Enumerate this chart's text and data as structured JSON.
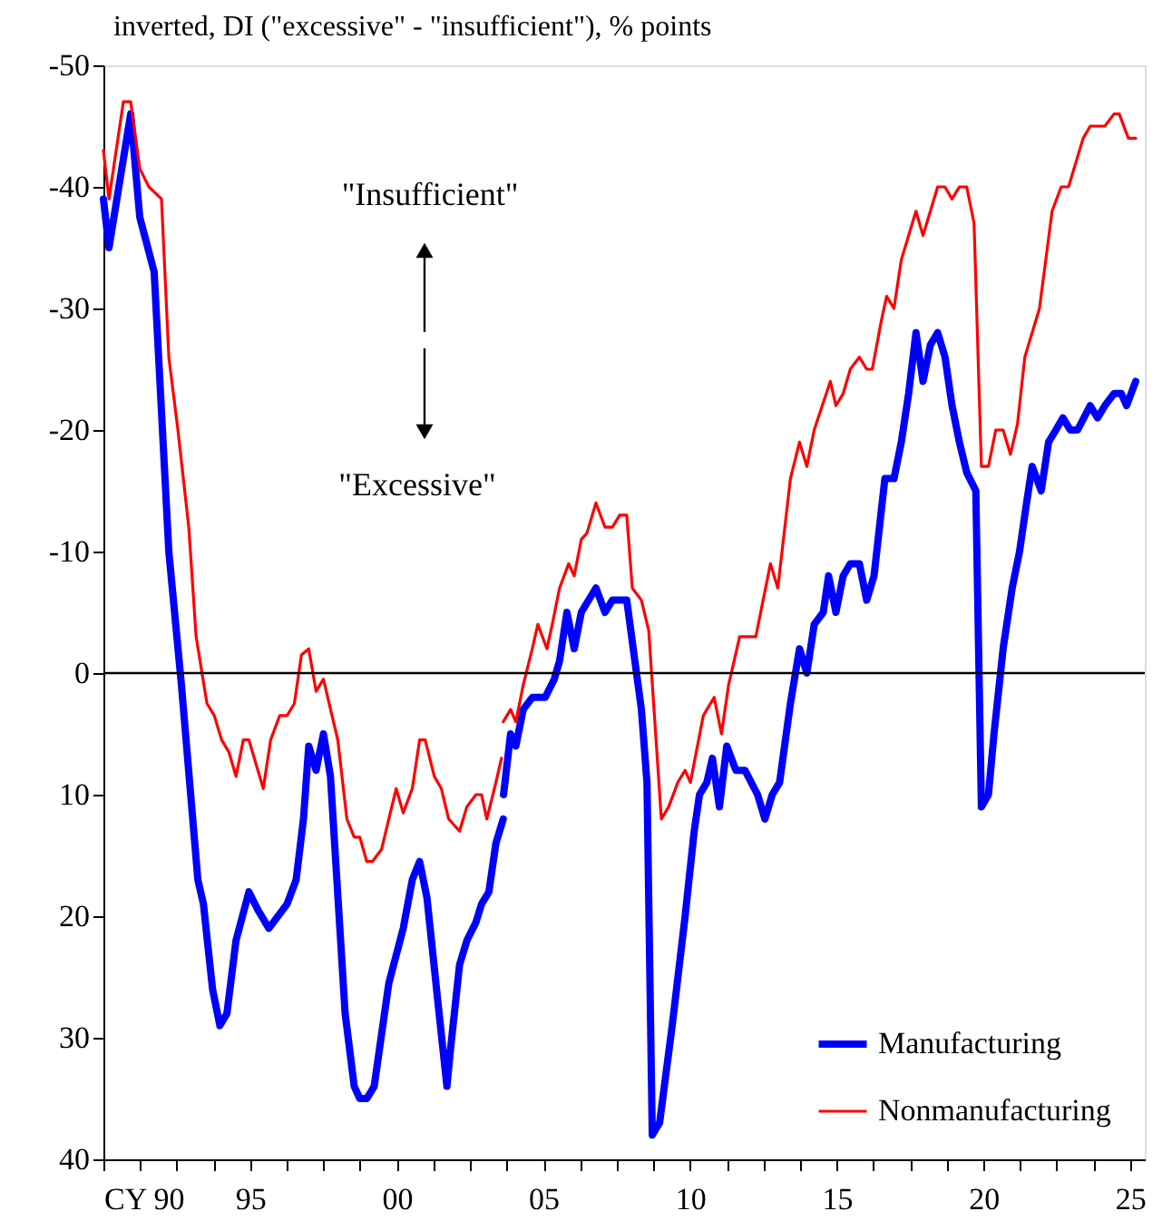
{
  "chart_data": {
    "type": "line",
    "ylabel": "inverted, DI (\"excessive\" - \"insufficient\"), % points",
    "annotations": [
      "\"Insufficient\"",
      "\"Excessive\""
    ],
    "xlim": [
      1990,
      2025.5
    ],
    "xticks": [
      {
        "value": 1990,
        "label": "CY 90"
      },
      {
        "value": 1991.25,
        "label": null
      },
      {
        "value": 1992.5,
        "label": null
      },
      {
        "value": 1993.75,
        "label": null
      },
      {
        "value": 1995,
        "label": "95"
      },
      {
        "value": 1996.25,
        "label": null
      },
      {
        "value": 1997.5,
        "label": null
      },
      {
        "value": 1998.75,
        "label": null
      },
      {
        "value": 2000,
        "label": "00"
      },
      {
        "value": 2001.25,
        "label": null
      },
      {
        "value": 2002.5,
        "label": null
      },
      {
        "value": 2003.75,
        "label": null
      },
      {
        "value": 2005,
        "label": "05"
      },
      {
        "value": 2006.25,
        "label": null
      },
      {
        "value": 2007.5,
        "label": null
      },
      {
        "value": 2008.75,
        "label": null
      },
      {
        "value": 2010,
        "label": "10"
      },
      {
        "value": 2011.25,
        "label": null
      },
      {
        "value": 2012.5,
        "label": null
      },
      {
        "value": 2013.75,
        "label": null
      },
      {
        "value": 2015,
        "label": "15"
      },
      {
        "value": 2016.25,
        "label": null
      },
      {
        "value": 2017.5,
        "label": null
      },
      {
        "value": 2018.75,
        "label": null
      },
      {
        "value": 2020,
        "label": "20"
      },
      {
        "value": 2021.25,
        "label": null
      },
      {
        "value": 2022.5,
        "label": null
      },
      {
        "value": 2023.75,
        "label": null
      },
      {
        "value": 2025,
        "label": "25"
      }
    ],
    "ylim": [
      40,
      -50
    ],
    "yticks": [
      -50,
      -40,
      -30,
      -20,
      -10,
      0,
      10,
      20,
      30,
      40
    ],
    "grid": false,
    "legend": "bottom right",
    "ref_lines": [
      {
        "axis": "y",
        "value": 0,
        "color": "#000000"
      }
    ],
    "series": [
      {
        "name": "Manufacturing",
        "color": "#0000ff",
        "x": [
          1990.0,
          1990.19,
          1990.93,
          1991.24,
          1991.73,
          1992.23,
          1992.66,
          1993.22,
          1993.41,
          1993.72,
          1993.97,
          1994.21,
          1994.52,
          1994.96,
          1995.27,
          1995.64,
          1996.26,
          1996.57,
          1996.82,
          1997.0,
          1997.25,
          1997.5,
          1997.74,
          1998.24,
          1998.55,
          1998.74,
          1998.98,
          1999.23,
          1999.73,
          2000.22,
          2000.53,
          2000.78,
          2001.03,
          2001.4,
          2001.71,
          2001.83,
          2002.14,
          2002.39,
          2002.7,
          2002.89,
          2003.14,
          2003.38,
          2003.63,
          2003.635,
          2003.64,
          2003.88,
          2004.06,
          2004.31,
          2004.62,
          2005.06,
          2005.37,
          2005.55,
          2005.8,
          2006.05,
          2006.29,
          2006.79,
          2007.1,
          2007.35,
          2007.84,
          2008.34,
          2008.53,
          2008.71,
          2008.96,
          2009.39,
          2009.83,
          2010.14,
          2010.32,
          2010.57,
          2010.76,
          2011.0,
          2011.25,
          2011.56,
          2011.87,
          2012.3,
          2012.55,
          2012.8,
          2013.05,
          2013.42,
          2013.73,
          2013.98,
          2014.23,
          2014.54,
          2014.72,
          2014.97,
          2015.22,
          2015.46,
          2015.77,
          2016.02,
          2016.27,
          2016.64,
          2016.95,
          2017.2,
          2017.45,
          2017.7,
          2017.94,
          2018.19,
          2018.44,
          2018.69,
          2018.93,
          2019.18,
          2019.43,
          2019.74,
          2019.93,
          2020.17,
          2020.36,
          2020.67,
          2020.98,
          2021.23,
          2021.47,
          2021.66,
          2021.97,
          2022.22,
          2022.47,
          2022.71,
          2022.96,
          2023.21,
          2023.64,
          2023.89,
          2024.14,
          2024.45,
          2024.7,
          2024.88,
          2025.19
        ],
        "values": [
          -39,
          -35,
          -46,
          -37.5,
          -33,
          -10,
          1,
          17,
          19,
          26,
          29,
          28,
          22,
          18,
          19.5,
          21,
          19,
          17,
          12,
          6,
          8,
          5,
          8.5,
          28,
          34,
          35,
          35,
          34,
          25.5,
          21,
          17,
          15.5,
          18.5,
          27,
          34,
          31,
          24,
          22,
          20.5,
          19,
          18,
          14,
          12,
          null,
          10,
          5,
          6,
          3,
          2,
          2,
          0.5,
          -1,
          -5,
          -2,
          -5,
          -7,
          -5,
          -6,
          -6,
          3,
          9,
          38,
          37,
          29,
          20,
          13,
          10,
          9,
          7,
          11,
          6,
          8,
          8,
          10,
          12,
          10,
          9,
          2.5,
          -2,
          0,
          -4,
          -5,
          -8,
          -5,
          -8,
          -9,
          -9,
          -6,
          -8,
          -16,
          -16,
          -19,
          -23,
          -28,
          -24,
          -27,
          -28,
          -26,
          -22,
          -19,
          -16.5,
          -15,
          11,
          10,
          5,
          -2,
          -7,
          -10,
          -14,
          -17,
          -15,
          -19,
          -20,
          -21,
          -20,
          -20,
          -22,
          -21,
          -22,
          -23,
          -23,
          -22,
          -24
        ]
      },
      {
        "name": "Nonmanufacturing",
        "color": "#ff0000",
        "x": [
          1990.0,
          1990.19,
          1990.68,
          1990.93,
          1991.24,
          1991.55,
          1991.98,
          1992.23,
          1992.54,
          1992.91,
          1993.16,
          1993.53,
          1993.78,
          1994.03,
          1994.28,
          1994.52,
          1994.77,
          1994.96,
          1995.45,
          1995.7,
          1996.01,
          1996.26,
          1996.51,
          1996.75,
          1997.0,
          1997.25,
          1997.5,
          1997.99,
          1998.3,
          1998.55,
          1998.74,
          1998.98,
          1999.17,
          1999.48,
          1999.98,
          2000.22,
          2000.53,
          2000.78,
          2000.97,
          2001.28,
          2001.52,
          2001.77,
          2002.14,
          2002.39,
          2002.7,
          2002.89,
          2003.07,
          2003.38,
          2003.57,
          2003.6,
          2003.63,
          2003.88,
          2004.06,
          2004.31,
          2004.62,
          2004.81,
          2005.12,
          2005.3,
          2005.55,
          2005.86,
          2006.05,
          2006.29,
          2006.48,
          2006.79,
          2007.1,
          2007.35,
          2007.6,
          2007.84,
          2008.03,
          2008.34,
          2008.59,
          2009.02,
          2009.27,
          2009.58,
          2009.83,
          2010.01,
          2010.45,
          2010.82,
          2011.07,
          2011.31,
          2011.69,
          2012.0,
          2012.24,
          2012.74,
          2012.99,
          2013.42,
          2013.73,
          2013.98,
          2014.23,
          2014.78,
          2014.97,
          2015.22,
          2015.46,
          2015.77,
          2016.02,
          2016.21,
          2016.52,
          2016.7,
          2016.95,
          2017.2,
          2017.7,
          2017.94,
          2018.44,
          2018.69,
          2018.93,
          2019.18,
          2019.43,
          2019.68,
          2019.93,
          2020.17,
          2020.42,
          2020.67,
          2020.92,
          2021.16,
          2021.41,
          2021.91,
          2022.34,
          2022.65,
          2022.9,
          2023.4,
          2023.64,
          2024.14,
          2024.45,
          2024.63,
          2024.94,
          2025.19
        ],
        "values": [
          -43,
          -39,
          -47,
          -47,
          -41.5,
          -40,
          -39,
          -26,
          -20,
          -12,
          -3,
          2.5,
          3.5,
          5.5,
          6.5,
          8.5,
          5.5,
          5.5,
          9.5,
          5.5,
          3.5,
          3.5,
          2.5,
          -1.5,
          -2,
          1.5,
          0.5,
          5.5,
          12,
          13.5,
          13.5,
          15.5,
          15.5,
          14.5,
          9.5,
          11.5,
          9.5,
          5.5,
          5.5,
          8.5,
          9.5,
          12,
          13,
          11,
          10,
          10,
          12,
          9,
          7,
          null,
          4,
          3,
          4,
          1,
          -2,
          -4,
          -2,
          -4,
          -7,
          -9,
          -8,
          -11,
          -11.5,
          -14,
          -12,
          -12,
          -13,
          -13,
          -7,
          -6,
          -3.5,
          12,
          11,
          9,
          8,
          9,
          3.5,
          2,
          5,
          1,
          -3,
          -3,
          -3,
          -9,
          -7,
          -16,
          -19,
          -17,
          -20,
          -24,
          -22,
          -23,
          -25,
          -26,
          -25,
          -25,
          -29,
          -31,
          -30,
          -34,
          -38,
          -36,
          -40,
          -40,
          -39,
          -40,
          -40,
          -37,
          -17,
          -17,
          -20,
          -20,
          -18,
          -20.5,
          -26,
          -30,
          -38,
          -40,
          -40,
          -44,
          -45,
          -45,
          -46,
          -46,
          -44,
          -44
        ]
      }
    ]
  }
}
